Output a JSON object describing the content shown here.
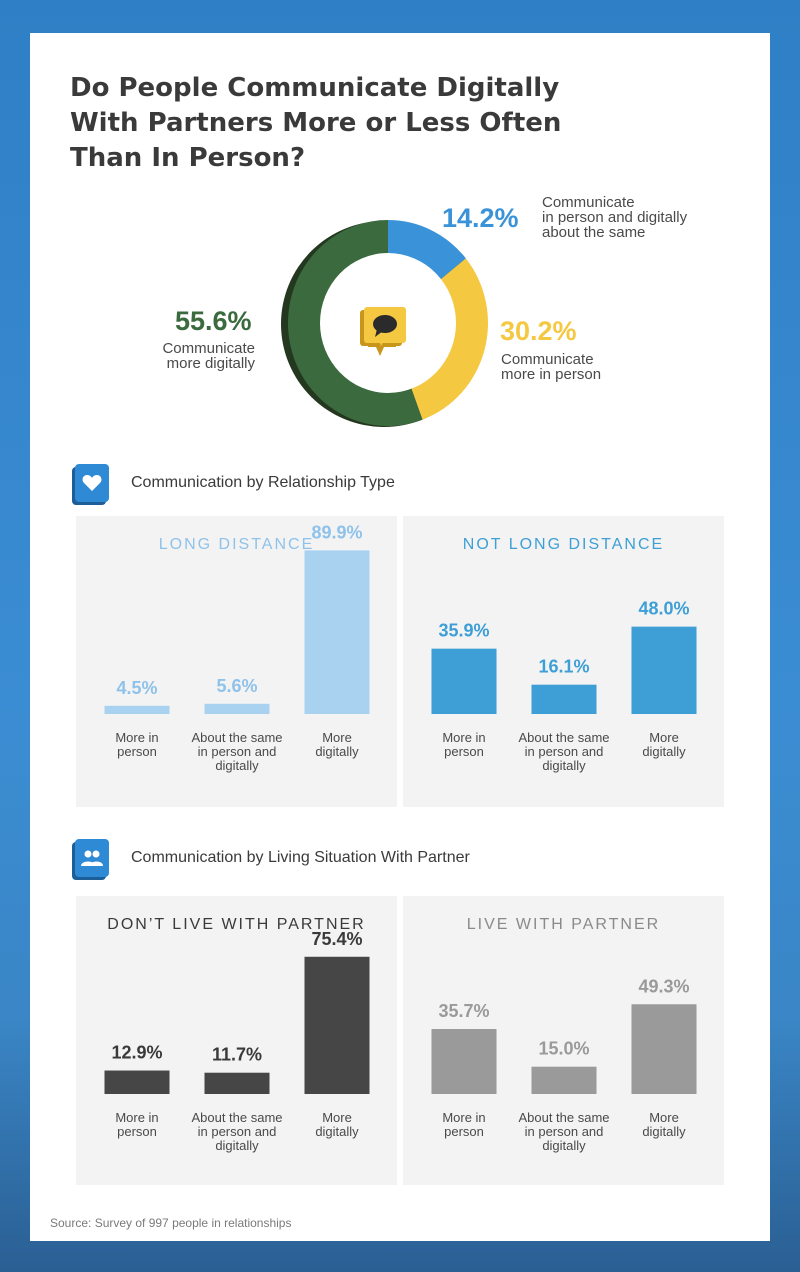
{
  "title": "Do People Communicate Digitally With Partners More or Less Often Than In Person?",
  "donut": {
    "slices": [
      {
        "value": 14.2,
        "label": "14.2%",
        "desc": [
          "Communicate",
          "in person and digitally",
          "about the same"
        ],
        "color": "#3a93d9"
      },
      {
        "value": 30.2,
        "label": "30.2%",
        "desc": [
          "Communicate",
          "more in person"
        ],
        "color": "#f5c842"
      },
      {
        "value": 55.6,
        "label": "55.6%",
        "desc": [
          "Communicate",
          "more digitally"
        ],
        "color": "#3b6a3e"
      }
    ],
    "center_icon": "speech-bubble-icon"
  },
  "sections": [
    {
      "title": "Communication by Relationship Type",
      "icon": "heart-icon"
    },
    {
      "title": "Communication by Living Situation With Partner",
      "icon": "couple-icon"
    }
  ],
  "chart_data": [
    {
      "type": "bar",
      "title": "LONG DISTANCE",
      "categories": [
        "More in person",
        "About the same in person and digitally",
        "More digitally"
      ],
      "values": [
        4.5,
        5.6,
        89.9
      ],
      "value_labels": [
        "4.5%",
        "5.6%",
        "89.9%"
      ],
      "ylim": [
        0,
        100
      ],
      "color": "#a9d2f0",
      "label_color": "#8fc2ea"
    },
    {
      "type": "bar",
      "title": "NOT LONG DISTANCE",
      "categories": [
        "More in person",
        "About the same in person and digitally",
        "More digitally"
      ],
      "values": [
        35.9,
        16.1,
        48.0
      ],
      "value_labels": [
        "35.9%",
        "16.1%",
        "48.0%"
      ],
      "ylim": [
        0,
        100
      ],
      "color": "#3d9fd6",
      "label_color": "#3d9fd6"
    },
    {
      "type": "bar",
      "title": "DON’T LIVE WITH PARTNER",
      "categories": [
        "More in person",
        "About the same in person and digitally",
        "More digitally"
      ],
      "values": [
        12.9,
        11.7,
        75.4
      ],
      "value_labels": [
        "12.9%",
        "11.7%",
        "75.4%"
      ],
      "ylim": [
        0,
        100
      ],
      "color": "#464646",
      "label_color": "#3a3a3a"
    },
    {
      "type": "bar",
      "title": "LIVE WITH PARTNER",
      "categories": [
        "More in person",
        "About the same in person and digitally",
        "More digitally"
      ],
      "values": [
        35.7,
        15.0,
        49.3
      ],
      "value_labels": [
        "35.7%",
        "15.0%",
        "49.3%"
      ],
      "ylim": [
        0,
        100
      ],
      "color": "#9a9a9a",
      "label_color": "#9a9a9a"
    }
  ],
  "category_lines": [
    [
      "More in",
      "person"
    ],
    [
      "About the same",
      "in person and",
      "digitally"
    ],
    [
      "More",
      "digitally"
    ]
  ],
  "source": "Source: Survey of 997 people in relationships"
}
